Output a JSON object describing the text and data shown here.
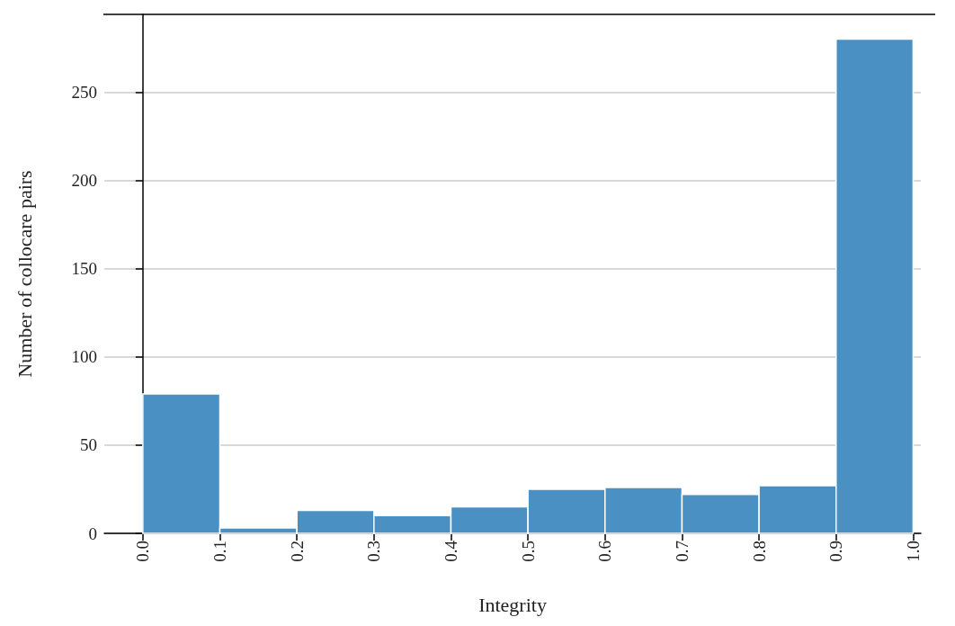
{
  "chart_data": {
    "type": "histogram",
    "xlabel": "Integrity",
    "ylabel": "Number of collocare pairs",
    "bins": [
      0.0,
      0.1,
      0.2,
      0.3,
      0.4,
      0.5,
      0.6,
      0.7,
      0.8,
      0.9,
      1.0
    ],
    "values": [
      79,
      3,
      13,
      10,
      15,
      25,
      26,
      22,
      27,
      280
    ],
    "color": "#4a90c2",
    "xlim": [
      -0.05,
      1.01
    ],
    "xticks": [
      {
        "value": 0.0,
        "label": "0.0"
      },
      0.1,
      0.2,
      0.3,
      0.4,
      0.5,
      0.6,
      0.7,
      0.8,
      0.9,
      {
        "value": 1.0,
        "label": "1.0"
      }
    ],
    "ylim": [
      0,
      294
    ],
    "yticks": [
      0,
      50,
      100,
      150,
      200,
      250
    ],
    "grid": "y"
  }
}
